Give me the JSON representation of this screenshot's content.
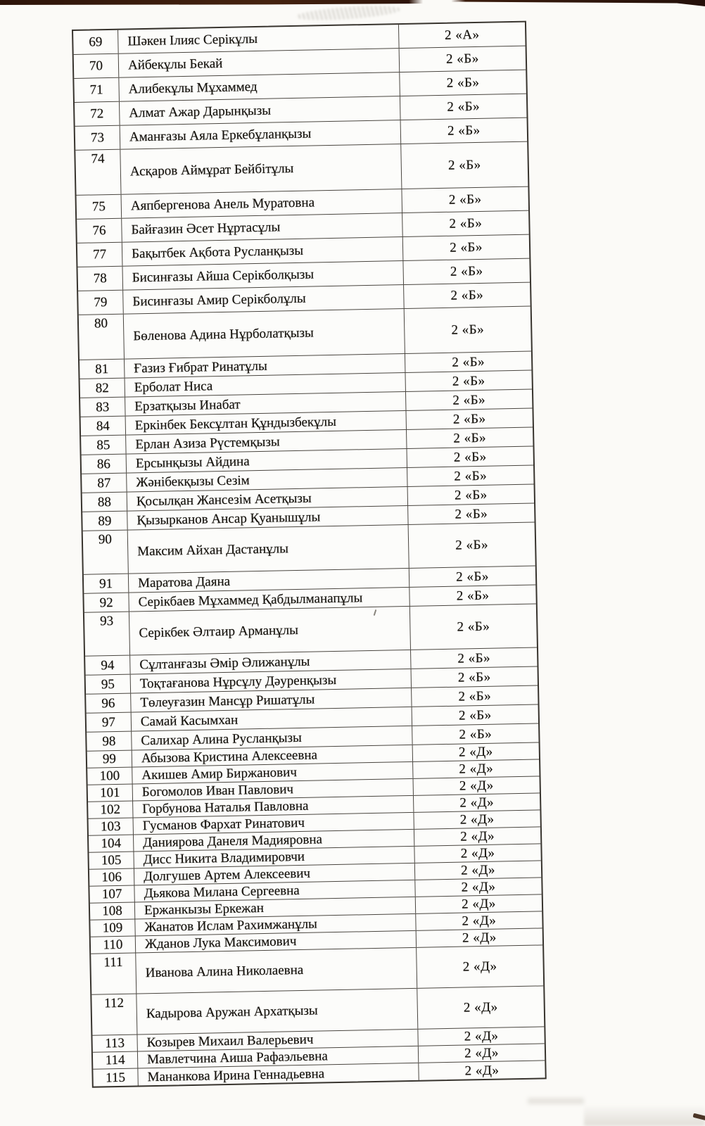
{
  "document": {
    "kind": "scanned student list table",
    "colors": {
      "paper": "#fbfaf7",
      "ink": "#17140f",
      "table_border": "#45413b",
      "scan_edge": "#351a0c"
    }
  },
  "table": {
    "rows": [
      {
        "no": "69",
        "name": "Шәкен Ілияс Серікұлы",
        "grade": "2 «А»",
        "tall": false
      },
      {
        "no": "70",
        "name": "Айбекұлы Бекай",
        "grade": "2 «Б»",
        "tall": false
      },
      {
        "no": "71",
        "name": "Алибекұлы Мұхаммед",
        "grade": "2 «Б»",
        "tall": false
      },
      {
        "no": "72",
        "name": "Алмат Ажар Дарынқызы",
        "grade": "2 «Б»",
        "tall": false
      },
      {
        "no": "73",
        "name": "Аманғазы Аяла Еркебұланқызы",
        "grade": "2 «Б»",
        "tall": false
      },
      {
        "no": "74",
        "name": "Асқаров Аймұрат Бейбітұлы",
        "grade": "2 «Б»",
        "tall": true
      },
      {
        "no": "75",
        "name": "Аяпбергенова Анель Муратовна",
        "grade": "2 «Б»",
        "tall": false
      },
      {
        "no": "76",
        "name": "Байғазин Әсет Нұртасұлы",
        "grade": "2 «Б»",
        "tall": false
      },
      {
        "no": "77",
        "name": "Бақытбек Ақбота Русланқызы",
        "grade": "2 «Б»",
        "tall": false
      },
      {
        "no": "78",
        "name": "Бисинғазы Айша Серікболқызы",
        "grade": "2 «Б»",
        "tall": false
      },
      {
        "no": "79",
        "name": "Бисинғазы Амир Серікболұлы",
        "grade": "2 «Б»",
        "tall": false
      },
      {
        "no": "80",
        "name": "Бөленова Адина Нұрболатқызы",
        "grade": "2 «Б»",
        "tall": true
      },
      {
        "no": "81",
        "name": "Ғазиз Ғибрат Ринатұлы",
        "grade": "2 «Б»",
        "tall": false
      },
      {
        "no": "82",
        "name": "Ерболат Ниса",
        "grade": "2 «Б»",
        "tall": false
      },
      {
        "no": "83",
        "name": "Ерзатқызы Инабат",
        "grade": "2 «Б»",
        "tall": false
      },
      {
        "no": "84",
        "name": "Еркінбек Бексұлтан Құндызбекұлы",
        "grade": "2 «Б»",
        "tall": false
      },
      {
        "no": "85",
        "name": "Ерлан Азиза Рүстемқызы",
        "grade": "2 «Б»",
        "tall": false
      },
      {
        "no": "86",
        "name": "Ерсынқызы Айдина",
        "grade": "2 «Б»",
        "tall": false
      },
      {
        "no": "87",
        "name": "Жәнібекқызы Сезім",
        "grade": "2 «Б»",
        "tall": false
      },
      {
        "no": "88",
        "name": "Қосылқан Жансезім Асетқызы",
        "grade": "2 «Б»",
        "tall": false
      },
      {
        "no": "89",
        "name": "Қызырканов Ансар Қуанышұлы",
        "grade": "2 «Б»",
        "tall": false
      },
      {
        "no": "90",
        "name": "Максим Айхан Дастанұлы",
        "grade": "2 «Б»",
        "tall": true
      },
      {
        "no": "91",
        "name": "Маратова Даяна",
        "grade": "2 «Б»",
        "tall": false
      },
      {
        "no": "92",
        "name": "Серікбаев Мұхаммед Қабдылманапұлы",
        "grade": "2 «Б»",
        "tall": false
      },
      {
        "no": "93",
        "name": "Серікбек Әлтаир Арманұлы",
        "grade": "2 «Б»",
        "tall": true
      },
      {
        "no": "94",
        "name": "Сұлтанғазы Әмір Әлижанұлы",
        "grade": "2 «Б»",
        "tall": false
      },
      {
        "no": "95",
        "name": "Тоқтағанова Нұрсұлу Дәуренқызы",
        "grade": "2 «Б»",
        "tall": false
      },
      {
        "no": "96",
        "name": "Төлеуғазин Мансұр Ришатұлы",
        "grade": "2 «Б»",
        "tall": false
      },
      {
        "no": "97",
        "name": "Самай Касымхан",
        "grade": "2 «Б»",
        "tall": false
      },
      {
        "no": "98",
        "name": "Салихар Алина Русланқызы",
        "grade": "2 «Б»",
        "tall": false
      },
      {
        "no": "99",
        "name": "Абызова Кристина Алексеевна",
        "grade": "2 «Д»",
        "tall": false
      },
      {
        "no": "100",
        "name": "Акишев Амир Биржанович",
        "grade": "2 «Д»",
        "tall": false
      },
      {
        "no": "101",
        "name": "Богомолов Иван Павлович",
        "grade": "2 «Д»",
        "tall": false
      },
      {
        "no": "102",
        "name": "Горбунова Наталья Павловна",
        "grade": "2 «Д»",
        "tall": false
      },
      {
        "no": "103",
        "name": "Гусманов Фархат Ринатович",
        "grade": "2 «Д»",
        "tall": false
      },
      {
        "no": "104",
        "name": "Даниярова Данеля Мадияровна",
        "grade": "2 «Д»",
        "tall": false
      },
      {
        "no": "105",
        "name": "Дисс Никита Владимировчи",
        "grade": "2 «Д»",
        "tall": false
      },
      {
        "no": "106",
        "name": "Долгушев Артем  Алексеевич",
        "grade": "2 «Д»",
        "tall": false
      },
      {
        "no": "107",
        "name": "Дьякова Милана Сергеевна",
        "grade": "2 «Д»",
        "tall": false
      },
      {
        "no": "108",
        "name": "Ержанкызы Еркежан",
        "grade": "2 «Д»",
        "tall": false
      },
      {
        "no": "109",
        "name": "Жанатов Ислам Рахимжанұлы",
        "grade": "2 «Д»",
        "tall": false
      },
      {
        "no": "110",
        "name": "Жданов Лука Максимович",
        "grade": "2 «Д»",
        "tall": false
      },
      {
        "no": "111",
        "name": "Иванова Алина Николаевна",
        "grade": "2 «Д»",
        "tall": true
      },
      {
        "no": "112",
        "name": "Кадырова Аружан Архатқызы",
        "grade": "2 «Д»",
        "tall": true
      },
      {
        "no": "113",
        "name": "Козырев Михаил Валерьевич",
        "grade": "2 «Д»",
        "tall": false
      },
      {
        "no": "114",
        "name": "Мавлетчина Аиша Рафаэльевна",
        "grade": "2 «Д»",
        "tall": false
      },
      {
        "no": "115",
        "name": "Мананкова Ирина Геннадьевна",
        "grade": "2 «Д»",
        "tall": false
      }
    ]
  }
}
